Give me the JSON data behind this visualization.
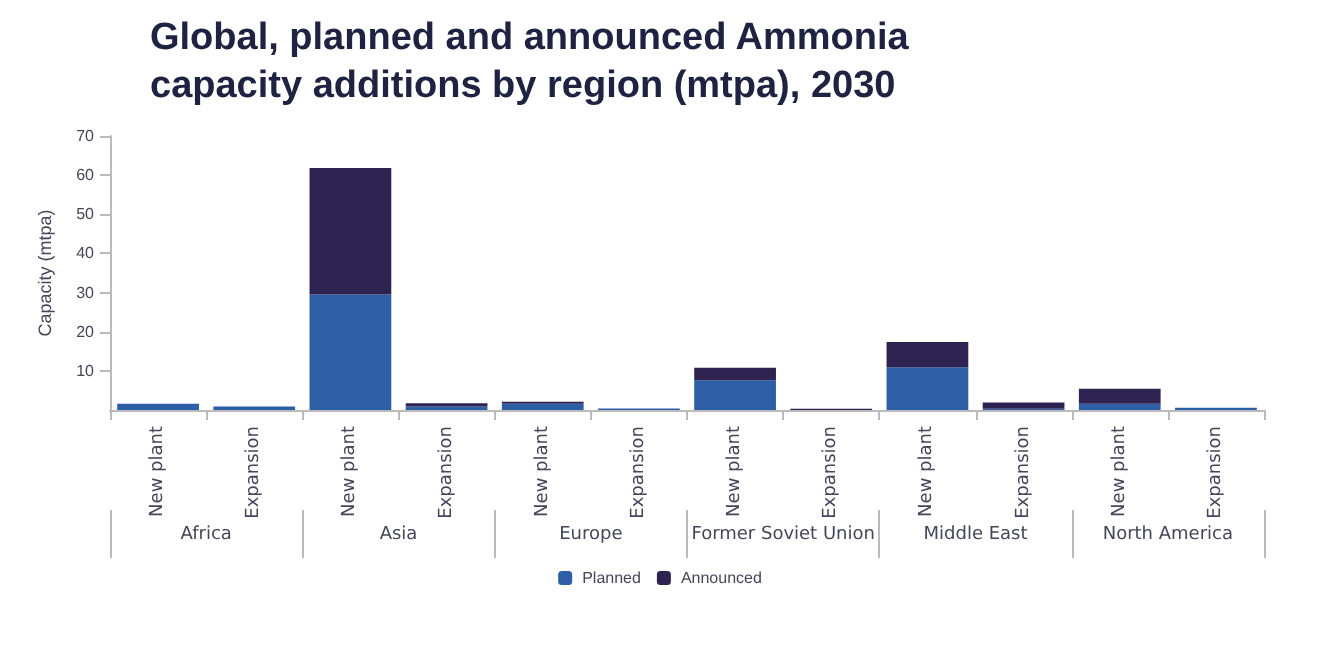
{
  "chart_data": {
    "type": "bar",
    "title": "Global, planned and announced Ammonia\ncapacity additions by region (mtpa), 2030",
    "ylabel": "Capacity (mtpa)",
    "categories": [
      "New plant",
      "Expansion",
      "New plant",
      "Expansion",
      "New plant",
      "Expansion",
      "New plant",
      "Expansion",
      "New plant",
      "Expansion",
      "New plant",
      "Expansion"
    ],
    "annotations": [
      "Africa",
      "Asia",
      "Europe",
      "Former Soviet Union",
      "Middle East",
      "North America"
    ],
    "stacked": true,
    "series": [
      {
        "name": "Planned",
        "color": "#2e5fa6",
        "values": [
          1.6,
          0.9,
          29.5,
          0.9,
          1.6,
          0.4,
          7.6,
          0,
          10.9,
          0.3,
          1.6,
          0.6
        ]
      },
      {
        "name": "Announced",
        "color": "#2e2350",
        "values": [
          0,
          0,
          32.3,
          0.8,
          0.5,
          0,
          3.2,
          0.3,
          6.5,
          1.6,
          3.8,
          0
        ]
      }
    ],
    "ylim": [
      0,
      70
    ],
    "yticks": [
      10,
      20,
      30,
      40,
      50,
      60,
      70
    ],
    "grid": false,
    "legend": "bottom"
  }
}
